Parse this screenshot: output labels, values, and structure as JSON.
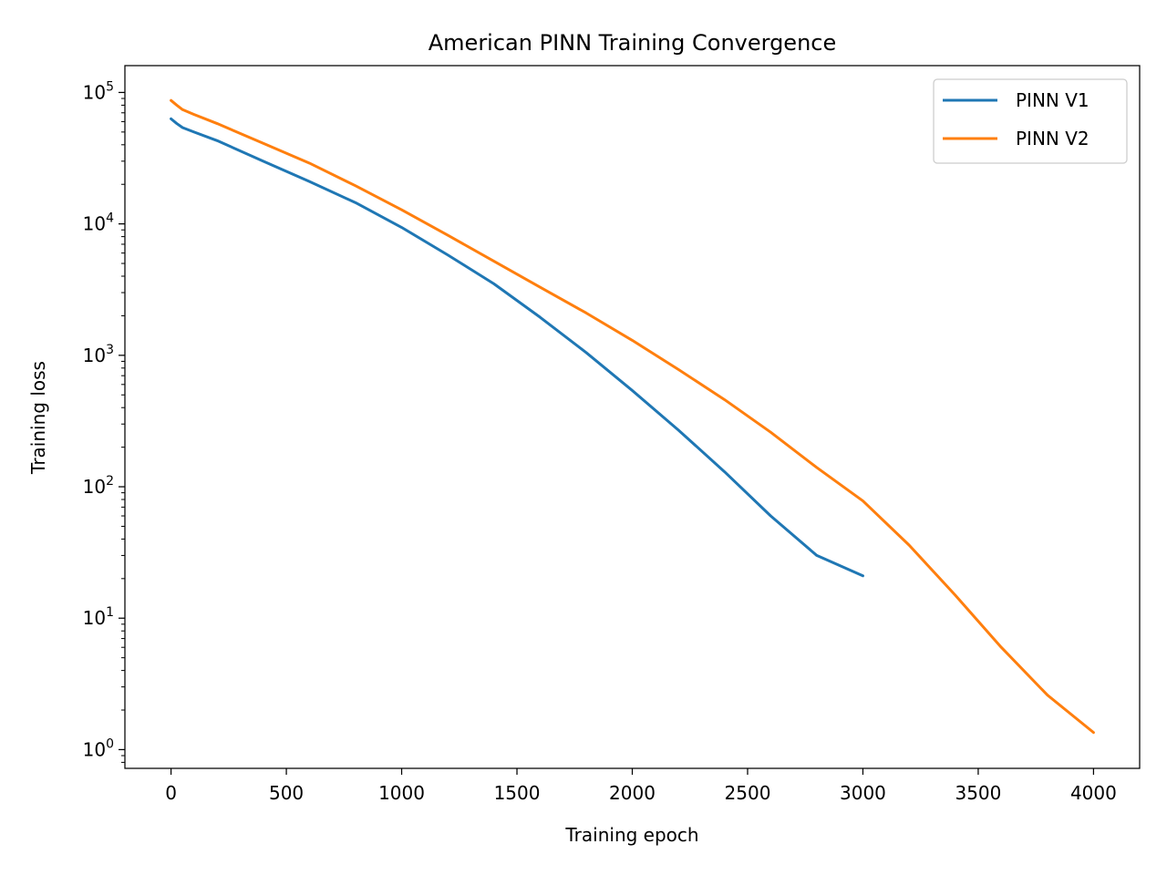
{
  "chart_data": {
    "type": "line",
    "title": "American PINN Training Convergence",
    "xlabel": "Training epoch",
    "ylabel": "Training loss",
    "xlim": [
      -200,
      4200
    ],
    "ylim": [
      0.72,
      160000
    ],
    "yscale": "log",
    "grid": false,
    "legend_position": "top-right",
    "x_ticks": [
      0,
      500,
      1000,
      1500,
      2000,
      2500,
      3000,
      3500,
      4000
    ],
    "x_tick_labels": [
      "0",
      "500",
      "1000",
      "1500",
      "2000",
      "2500",
      "3000",
      "3500",
      "4000"
    ],
    "y_ticks": [
      1,
      10,
      100,
      1000,
      10000,
      100000
    ],
    "y_tick_labels": [
      {
        "base": "10",
        "exp": "0"
      },
      {
        "base": "10",
        "exp": "1"
      },
      {
        "base": "10",
        "exp": "2"
      },
      {
        "base": "10",
        "exp": "3"
      },
      {
        "base": "10",
        "exp": "4"
      },
      {
        "base": "10",
        "exp": "5"
      }
    ],
    "series": [
      {
        "name": "PINN V1",
        "color": "#1f77b4",
        "x": [
          0,
          25,
          50,
          100,
          200,
          400,
          600,
          800,
          1000,
          1200,
          1400,
          1600,
          1800,
          2000,
          2200,
          2400,
          2600,
          2800,
          3000
        ],
        "y": [
          63000,
          58000,
          54000,
          50000,
          43000,
          30000,
          21000,
          14500,
          9400,
          5800,
          3500,
          1950,
          1050,
          540,
          270,
          130,
          60,
          30,
          21
        ]
      },
      {
        "name": "PINN V2",
        "color": "#ff7f0e",
        "x": [
          0,
          25,
          50,
          100,
          200,
          400,
          600,
          800,
          1000,
          1200,
          1400,
          1600,
          1800,
          2000,
          2200,
          2400,
          2600,
          2800,
          3000,
          3200,
          3400,
          3600,
          3800,
          4000
        ],
        "y": [
          87000,
          80000,
          74000,
          68000,
          58000,
          41000,
          29000,
          19500,
          12800,
          8200,
          5200,
          3300,
          2100,
          1300,
          780,
          460,
          260,
          140,
          78,
          36,
          15,
          6,
          2.6,
          1.35
        ]
      }
    ]
  }
}
